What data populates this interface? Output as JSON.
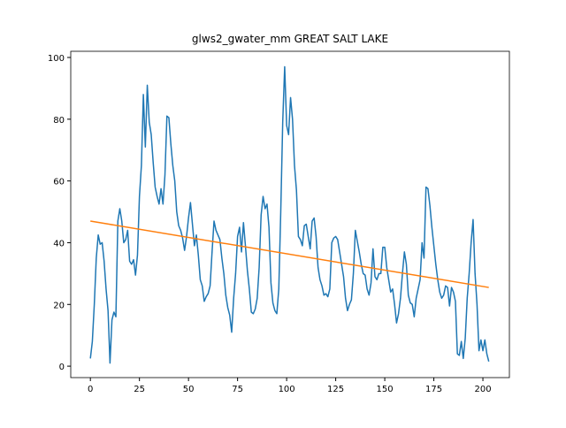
{
  "chart_data": {
    "type": "line",
    "title": "glws2_gwater_mm GREAT SALT LAKE",
    "series": [
      {
        "color": "#1f77b4",
        "x": [
          0,
          1,
          2,
          3,
          4,
          5,
          6,
          7,
          8,
          9,
          10,
          11,
          12,
          13,
          14,
          15,
          16,
          17,
          18,
          19,
          20,
          21,
          22,
          23,
          24,
          25,
          26,
          27,
          28,
          29,
          30,
          31,
          32,
          33,
          34,
          35,
          36,
          37,
          38,
          39,
          40,
          41,
          42,
          43,
          44,
          45,
          46,
          47,
          48,
          49,
          50,
          51,
          52,
          53,
          54,
          55,
          56,
          57,
          58,
          59,
          60,
          61,
          62,
          63,
          64,
          65,
          66,
          67,
          68,
          69,
          70,
          71,
          72,
          73,
          74,
          75,
          76,
          77,
          78,
          79,
          80,
          81,
          82,
          83,
          84,
          85,
          86,
          87,
          88,
          89,
          90,
          91,
          92,
          93,
          94,
          95,
          96,
          97,
          98,
          99,
          100,
          101,
          102,
          103,
          104,
          105,
          106,
          107,
          108,
          109,
          110,
          111,
          112,
          113,
          114,
          115,
          116,
          117,
          118,
          119,
          120,
          121,
          122,
          123,
          124,
          125,
          126,
          127,
          128,
          129,
          130,
          131,
          132,
          133,
          134,
          135,
          136,
          137,
          138,
          139,
          140,
          141,
          142,
          143,
          144,
          145,
          146,
          147,
          148,
          149,
          150,
          151,
          152,
          153,
          154,
          155,
          156,
          157,
          158,
          159,
          160,
          161,
          162,
          163,
          164,
          165,
          166,
          167,
          168,
          169,
          170,
          171,
          172,
          173,
          174,
          175,
          176,
          177,
          178,
          179,
          180,
          181,
          182,
          183,
          184,
          185,
          186,
          187,
          188,
          189,
          190,
          191,
          192,
          193,
          194,
          195,
          196,
          197,
          198,
          199,
          200,
          201,
          202,
          203
        ],
        "values": [
          2.5,
          8,
          20,
          35,
          42.5,
          39.5,
          40,
          34,
          25,
          18,
          1,
          15,
          17.5,
          16,
          47,
          51,
          47,
          40,
          41,
          44,
          34,
          33,
          34.5,
          29.5,
          36,
          55,
          65,
          88,
          71,
          91,
          79,
          75,
          66,
          58,
          55,
          52.5,
          57.5,
          52.5,
          62,
          81,
          80.5,
          72,
          65,
          60,
          50,
          45.5,
          44,
          41.5,
          37.5,
          42,
          48,
          53,
          46,
          39,
          42.5,
          36,
          28,
          26,
          21,
          22.5,
          23.5,
          26,
          37,
          47,
          44,
          42.5,
          41,
          35,
          30,
          23,
          19,
          16.5,
          11,
          22,
          30,
          42,
          45,
          37,
          46.5,
          39,
          31,
          25,
          17.5,
          17,
          18.5,
          22,
          32,
          49,
          55,
          51,
          52.5,
          45,
          27,
          20.5,
          18,
          17,
          25,
          50,
          79,
          97,
          78,
          75,
          87,
          80,
          65,
          57,
          42,
          41,
          39,
          45.5,
          46,
          42,
          38,
          47,
          48,
          42,
          32,
          28,
          26,
          23,
          23.5,
          22.5,
          25,
          40,
          41.5,
          42,
          41,
          37,
          33,
          29,
          22,
          18,
          20,
          21.5,
          30,
          44,
          40.5,
          37,
          33,
          30,
          29.5,
          25,
          23,
          27,
          38,
          29,
          28,
          30,
          30,
          38.5,
          38.5,
          32,
          28,
          24,
          25,
          20,
          14,
          17,
          22,
          30,
          37,
          33,
          23,
          20.5,
          20,
          16,
          22,
          25,
          28,
          40,
          35,
          58,
          57.5,
          52,
          45,
          39,
          33,
          28,
          24,
          22,
          23,
          26,
          25.5,
          19.5,
          25.5,
          24,
          21,
          4,
          3.5,
          8,
          2.5,
          9,
          22,
          30,
          40,
          47.5,
          30,
          20,
          5,
          8.5,
          5,
          8.5,
          4,
          1.5
        ]
      },
      {
        "color": "#ff7f0e",
        "x": [
          0,
          203
        ],
        "values": [
          47,
          25.5
        ]
      }
    ],
    "xlim": [
      -10,
      213.5
    ],
    "xticks": [
      0,
      25,
      50,
      75,
      100,
      125,
      150,
      175,
      200
    ],
    "ylim": [
      -3.7,
      102
    ],
    "yticks": [
      0,
      20,
      40,
      60,
      80,
      100
    ]
  }
}
